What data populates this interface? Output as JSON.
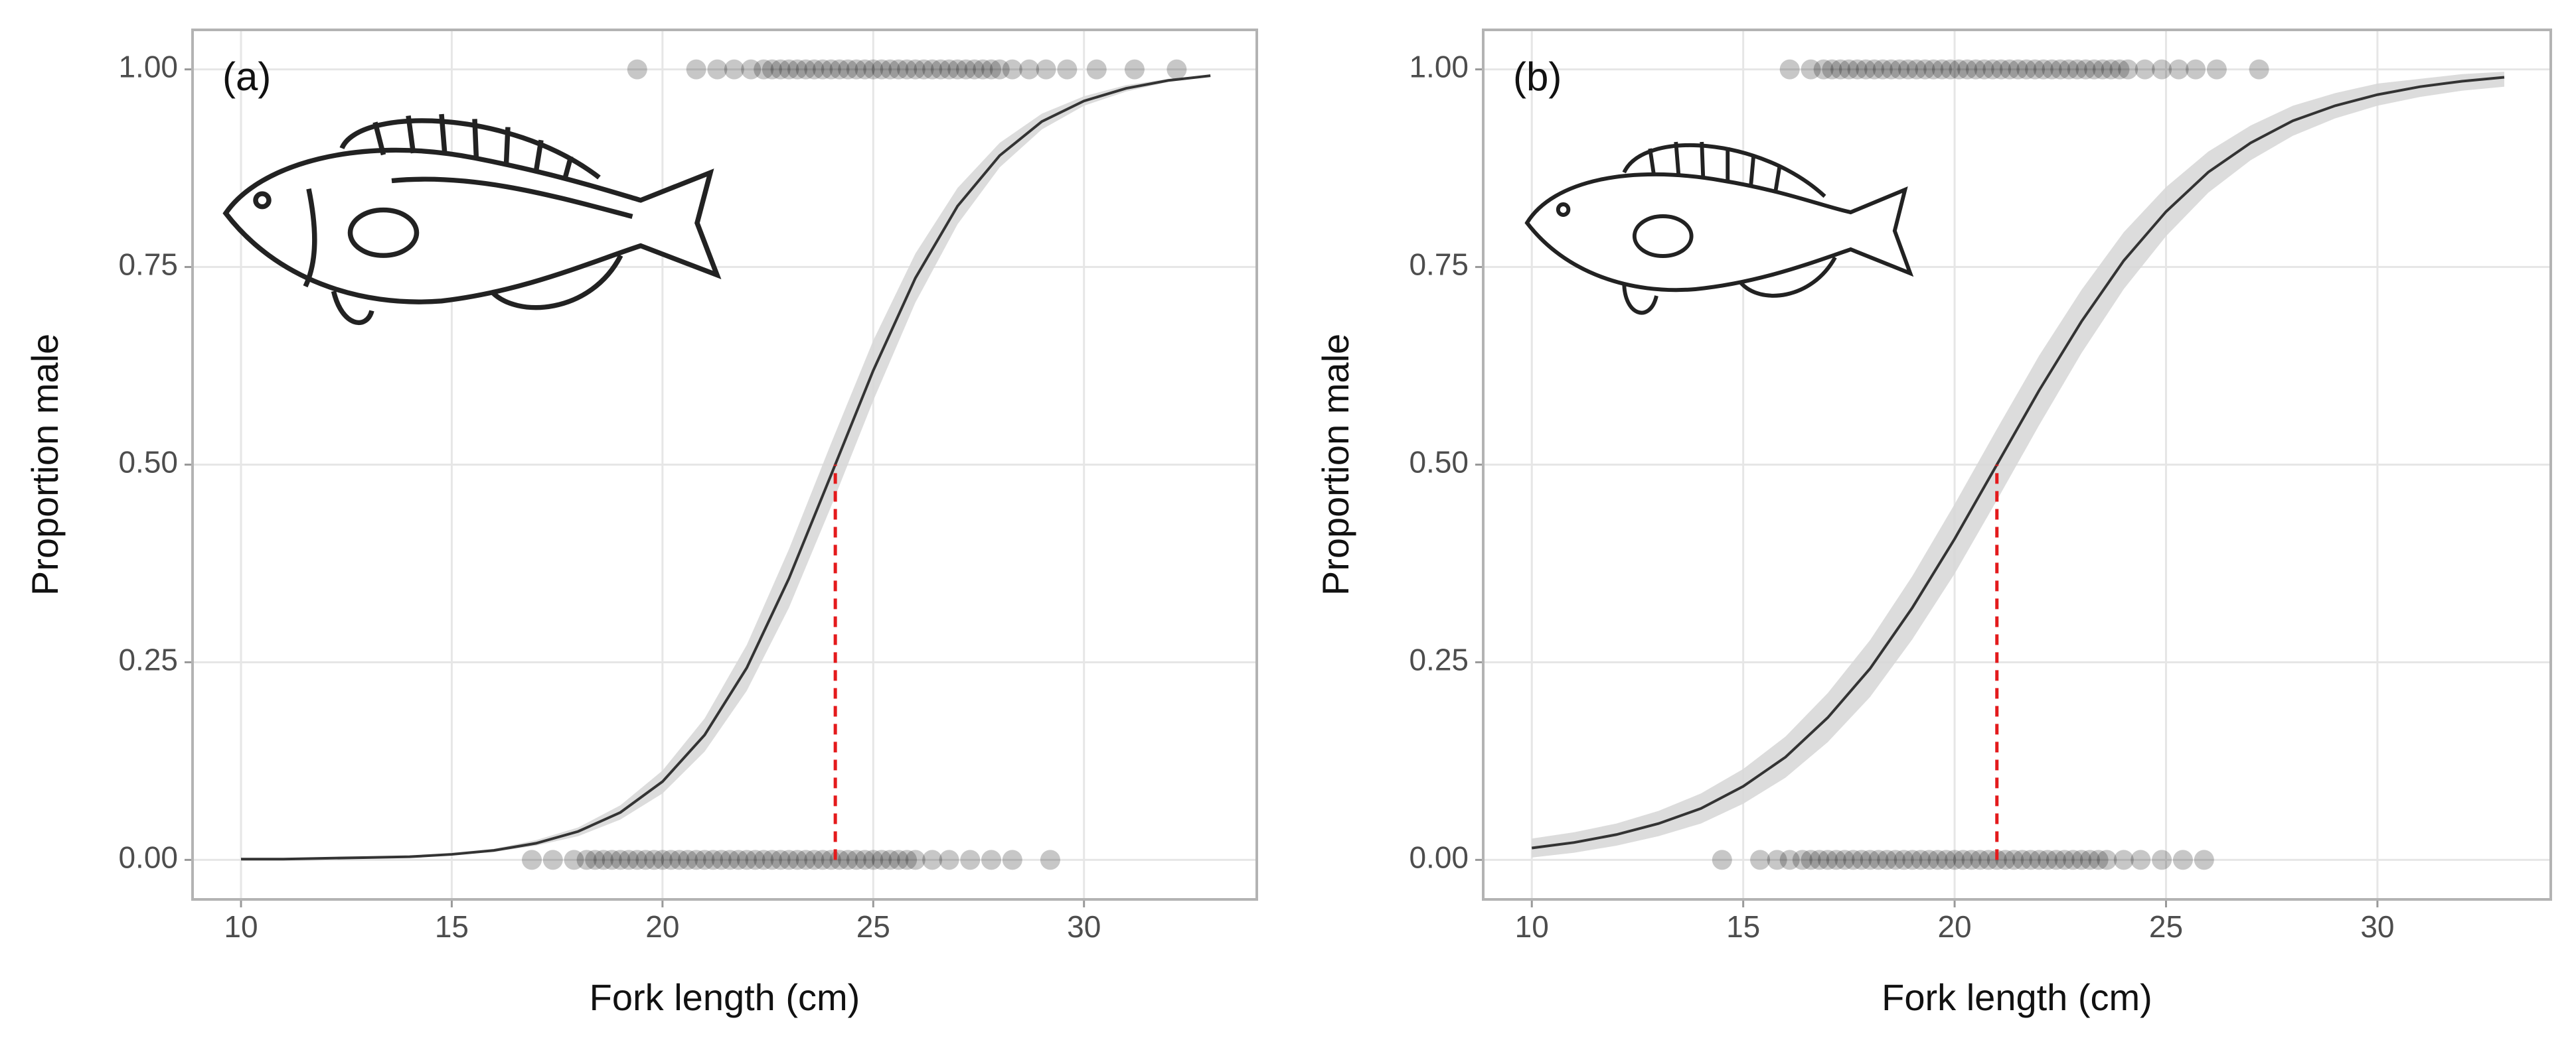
{
  "chart_data": [
    {
      "type": "logistic",
      "panel_label": "(a)",
      "xlabel": "Fork length (cm)",
      "ylabel": "Proportion male",
      "xlim": [
        8.85,
        34.1
      ],
      "ylim": [
        -0.05,
        1.05
      ],
      "xticks": [
        10,
        15,
        20,
        25,
        30
      ],
      "yticks": [
        {
          "value": 0,
          "label": "0.00"
        },
        {
          "value": 0.25,
          "label": "0.25"
        },
        {
          "value": 0.5,
          "label": "0.50"
        },
        {
          "value": 0.75,
          "label": "0.75"
        },
        {
          "value": 1,
          "label": "1.00"
        }
      ],
      "grid": true,
      "point_color": "#000000",
      "line_color": "#333333",
      "band_color": "#d6d6d6",
      "l50_color": "#e41a1c",
      "groups": [
        {
          "y": 1,
          "x": [
            19.4,
            20.8,
            21.3,
            21.7,
            22.1,
            22.4,
            22.6,
            22.8,
            23.0,
            23.2,
            23.4,
            23.6,
            23.8,
            24.0,
            24.2,
            24.4,
            24.6,
            24.8,
            25.0,
            25.2,
            25.4,
            25.6,
            25.8,
            26.0,
            26.2,
            26.4,
            26.6,
            26.8,
            27.0,
            27.2,
            27.4,
            27.6,
            27.8,
            28.0,
            28.3,
            28.7,
            29.1,
            29.6,
            30.3,
            31.2,
            32.2
          ]
        },
        {
          "y": 0,
          "x": [
            16.9,
            17.4,
            17.9,
            18.2,
            18.4,
            18.6,
            18.8,
            19.0,
            19.2,
            19.4,
            19.6,
            19.8,
            20.0,
            20.2,
            20.4,
            20.6,
            20.8,
            21.0,
            21.2,
            21.4,
            21.6,
            21.8,
            22.0,
            22.2,
            22.4,
            22.6,
            22.8,
            23.0,
            23.2,
            23.4,
            23.6,
            23.8,
            24.0,
            24.2,
            24.4,
            24.6,
            24.8,
            25.0,
            25.2,
            25.4,
            25.6,
            25.8,
            26.0,
            26.4,
            26.8,
            27.3,
            27.8,
            28.3,
            29.2
          ]
        }
      ],
      "fit": {
        "x": [
          10,
          11,
          12,
          13,
          14,
          15,
          16,
          17,
          18,
          19,
          20,
          21,
          22,
          23,
          24,
          25,
          26,
          27,
          28,
          29,
          30,
          31,
          32,
          33
        ],
        "y": [
          0.001,
          0.001,
          0.002,
          0.003,
          0.004,
          0.007,
          0.012,
          0.021,
          0.036,
          0.06,
          0.099,
          0.158,
          0.243,
          0.356,
          0.487,
          0.619,
          0.736,
          0.827,
          0.891,
          0.934,
          0.96,
          0.976,
          0.986,
          0.992
        ],
        "lower": [
          0.0,
          0.001,
          0.001,
          0.002,
          0.004,
          0.006,
          0.01,
          0.018,
          0.03,
          0.051,
          0.084,
          0.137,
          0.214,
          0.319,
          0.447,
          0.581,
          0.705,
          0.804,
          0.876,
          0.924,
          0.954,
          0.972,
          0.984,
          0.991
        ],
        "upper": [
          0.001,
          0.001,
          0.002,
          0.003,
          0.005,
          0.009,
          0.014,
          0.025,
          0.041,
          0.069,
          0.113,
          0.179,
          0.272,
          0.393,
          0.527,
          0.657,
          0.767,
          0.85,
          0.907,
          0.944,
          0.966,
          0.98,
          0.988,
          0.993
        ]
      },
      "l50": {
        "x": 24.1,
        "y": 0.5
      }
    },
    {
      "type": "logistic",
      "panel_label": "(b)",
      "xlabel": "Fork length (cm)",
      "ylabel": "Proportion male",
      "xlim": [
        8.85,
        34.1
      ],
      "ylim": [
        -0.05,
        1.05
      ],
      "xticks": [
        10,
        15,
        20,
        25,
        30
      ],
      "yticks": [
        {
          "value": 0,
          "label": "0.00"
        },
        {
          "value": 0.25,
          "label": "0.25"
        },
        {
          "value": 0.5,
          "label": "0.50"
        },
        {
          "value": 0.75,
          "label": "0.75"
        },
        {
          "value": 1,
          "label": "1.00"
        }
      ],
      "grid": true,
      "point_color": "#000000",
      "line_color": "#333333",
      "band_color": "#d6d6d6",
      "l50_color": "#e41a1c",
      "groups": [
        {
          "y": 1,
          "x": [
            16.1,
            16.6,
            16.9,
            17.1,
            17.3,
            17.5,
            17.7,
            17.9,
            18.1,
            18.3,
            18.5,
            18.7,
            18.9,
            19.1,
            19.3,
            19.5,
            19.7,
            19.9,
            20.1,
            20.3,
            20.5,
            20.7,
            20.9,
            21.1,
            21.3,
            21.5,
            21.7,
            21.9,
            22.1,
            22.3,
            22.5,
            22.7,
            22.9,
            23.1,
            23.3,
            23.5,
            23.7,
            23.9,
            24.1,
            24.5,
            24.9,
            25.3,
            25.7,
            26.2,
            27.2
          ]
        },
        {
          "y": 0,
          "x": [
            14.5,
            15.4,
            15.8,
            16.1,
            16.4,
            16.6,
            16.8,
            17.0,
            17.2,
            17.4,
            17.6,
            17.8,
            18.0,
            18.2,
            18.4,
            18.6,
            18.8,
            19.0,
            19.2,
            19.4,
            19.6,
            19.8,
            20.0,
            20.2,
            20.4,
            20.6,
            20.8,
            21.0,
            21.2,
            21.4,
            21.6,
            21.8,
            22.0,
            22.2,
            22.4,
            22.6,
            22.8,
            23.0,
            23.2,
            23.4,
            23.6,
            24.0,
            24.4,
            24.9,
            25.4,
            25.9
          ]
        }
      ],
      "fit": {
        "x": [
          10,
          11,
          12,
          13,
          14,
          15,
          16,
          17,
          18,
          19,
          20,
          21,
          22,
          23,
          24,
          25,
          26,
          27,
          28,
          29,
          30,
          31,
          32,
          33
        ],
        "y": [
          0.015,
          0.022,
          0.032,
          0.046,
          0.065,
          0.093,
          0.13,
          0.18,
          0.242,
          0.319,
          0.406,
          0.5,
          0.594,
          0.681,
          0.758,
          0.82,
          0.87,
          0.907,
          0.935,
          0.954,
          0.968,
          0.978,
          0.985,
          0.99
        ],
        "lower": [
          0.003,
          0.009,
          0.018,
          0.03,
          0.046,
          0.071,
          0.104,
          0.149,
          0.206,
          0.279,
          0.362,
          0.455,
          0.55,
          0.641,
          0.722,
          0.789,
          0.844,
          0.885,
          0.916,
          0.938,
          0.954,
          0.965,
          0.973,
          0.978
        ],
        "upper": [
          0.027,
          0.035,
          0.046,
          0.062,
          0.084,
          0.115,
          0.156,
          0.211,
          0.278,
          0.359,
          0.45,
          0.545,
          0.638,
          0.721,
          0.794,
          0.851,
          0.896,
          0.929,
          0.954,
          0.97,
          0.982,
          0.988,
          0.994,
          0.997
        ]
      },
      "l50": {
        "x": 21.0,
        "y": 0.5
      }
    }
  ]
}
